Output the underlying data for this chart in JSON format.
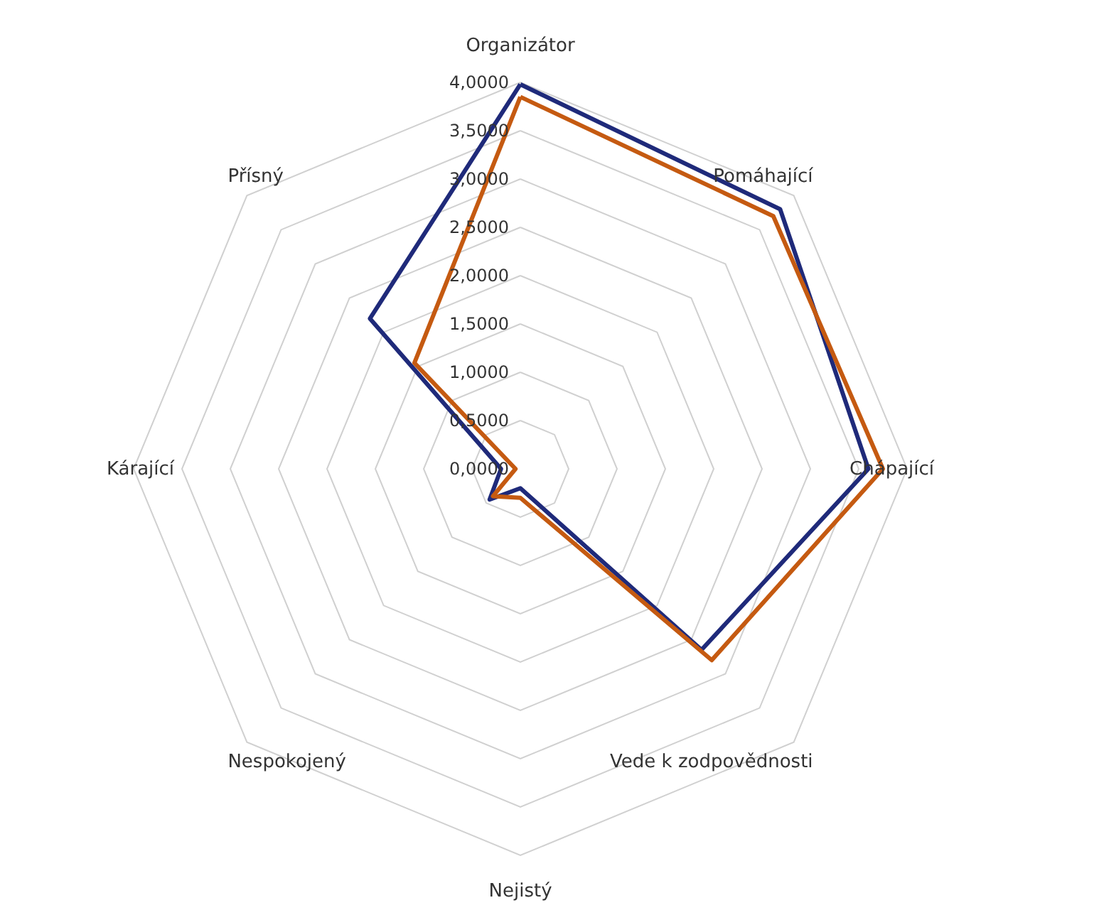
{
  "chart_data": {
    "type": "radar",
    "categories": [
      "Organizátor",
      "Pomáhající",
      "Chápající",
      "Vede k zodpovědnosti",
      "Nejistý",
      "Nespokojený",
      "Kárající",
      "Přísný"
    ],
    "series": [
      {
        "color": "#1f2a7a",
        "values": [
          3.98,
          3.8,
          3.6,
          2.65,
          0.2,
          0.45,
          0.2,
          2.2
        ]
      },
      {
        "color": "#c55a11",
        "values": [
          3.85,
          3.7,
          3.75,
          2.8,
          0.3,
          0.4,
          0.05,
          1.55
        ]
      }
    ],
    "ylim": [
      0,
      4
    ],
    "yticks": [
      {
        "value": 0,
        "label": "0,0000"
      },
      {
        "value": 0.5,
        "label": "0,5000"
      },
      {
        "value": 1,
        "label": "1,0000"
      },
      {
        "value": 1.5,
        "label": "1,5000"
      },
      {
        "value": 2,
        "label": "2,0000"
      },
      {
        "value": 2.5,
        "label": "2,5000"
      },
      {
        "value": 3,
        "label": "3,0000"
      },
      {
        "value": 3.5,
        "label": "3,5000"
      },
      {
        "value": 4,
        "label": "4,0000"
      }
    ],
    "grid": true,
    "line_style": "solid",
    "marker": "none"
  }
}
